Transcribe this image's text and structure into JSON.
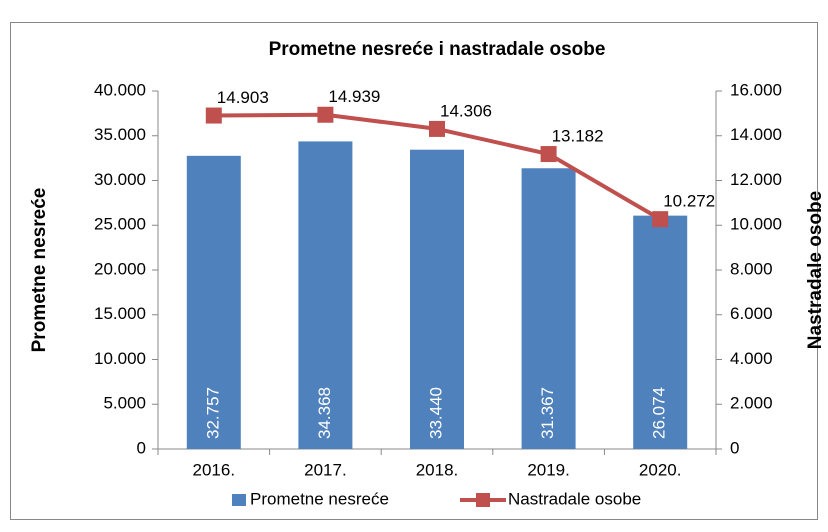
{
  "chart_data": {
    "type": "bar",
    "title": "Prometne nesreće i nastradale osobe",
    "categories": [
      "2016.",
      "2017.",
      "2018.",
      "2019.",
      "2020."
    ],
    "y_label": "Prometne nesreće",
    "y2_label": "Nastradale osobe",
    "series": [
      {
        "name": "Prometne nesreće",
        "color": "#4f81bd",
        "type": "bar",
        "axis": "y",
        "values": [
          32757,
          34368,
          33440,
          31367,
          26074
        ],
        "value_labels": [
          "32.757",
          "34.368",
          "33.440",
          "31.367",
          "26.074"
        ]
      },
      {
        "name": "Nastradale osobe",
        "color": "#c0504d",
        "type": "line",
        "axis": "y2",
        "values": [
          14903,
          14939,
          14306,
          13182,
          10272
        ],
        "value_labels": [
          "14.903",
          "14.939",
          "14.306",
          "13.182",
          "10.272"
        ]
      }
    ],
    "ylim": [
      0,
      40000
    ],
    "yticks": [
      0,
      {
        "value": 5000,
        "label": "5.000"
      },
      {
        "value": 10000,
        "label": "10.000"
      },
      {
        "value": 15000,
        "label": "15.000"
      },
      {
        "value": 20000,
        "label": "20.000"
      },
      {
        "value": 25000,
        "label": "25.000"
      },
      {
        "value": 30000,
        "label": "30.000"
      },
      {
        "value": 35000,
        "label": "35.000"
      },
      {
        "value": 40000,
        "label": "40.000"
      }
    ],
    "y2lim": [
      0,
      16000
    ],
    "y2ticks": [
      0,
      {
        "value": 2000,
        "label": "2.000"
      },
      {
        "value": 4000,
        "label": "4.000"
      },
      {
        "value": 6000,
        "label": "6.000"
      },
      {
        "value": 8000,
        "label": "8.000"
      },
      {
        "value": 10000,
        "label": "10.000"
      },
      {
        "value": 12000,
        "label": "12.000"
      },
      {
        "value": 14000,
        "label": "14.000"
      },
      {
        "value": 16000,
        "label": "16.000"
      }
    ],
    "grid": false
  }
}
